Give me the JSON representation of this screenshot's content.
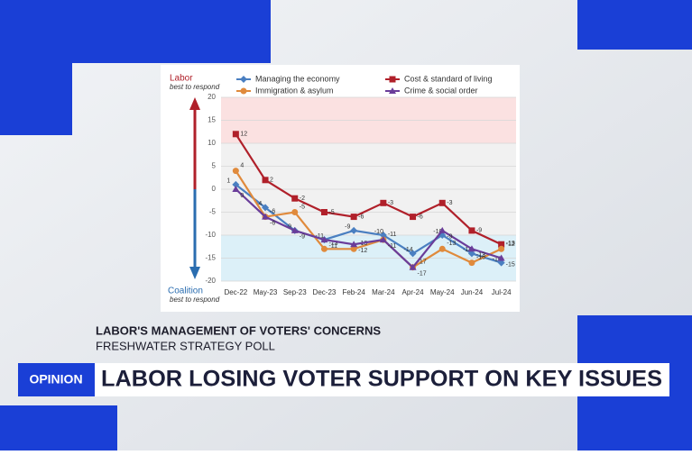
{
  "chart_data": {
    "type": "line",
    "axis_top_label": "Labor",
    "axis_top_sublabel": "best to respond",
    "axis_bottom_label": "Coalition",
    "axis_bottom_sublabel": "best to respond",
    "categories": [
      "Dec-22",
      "May-23",
      "Sep-23",
      "Dec-23",
      "Feb-24",
      "Mar-24",
      "Apr-24",
      "May-24",
      "Jun-24",
      "Jul-24"
    ],
    "series": [
      {
        "name": "Managing the economy",
        "color": "#4a7fc1",
        "marker": "diamond",
        "values": [
          1,
          -4,
          -9,
          -11,
          -9,
          -10,
          -14,
          -10,
          -14,
          -16
        ]
      },
      {
        "name": "Cost & standard of living",
        "color": "#b0202a",
        "marker": "square",
        "values": [
          12,
          2,
          -2,
          -5,
          -6,
          -3,
          -6,
          -3,
          -9,
          -12
        ]
      },
      {
        "name": "Immigration & asylum",
        "color": "#e08a3c",
        "marker": "circle",
        "values": [
          4,
          -6,
          -5,
          -13,
          -13,
          -11,
          -17,
          -13,
          -16,
          -13
        ]
      },
      {
        "name": "Crime & social order",
        "color": "#6a3d9a",
        "marker": "triangle",
        "values": [
          0,
          -6,
          -9,
          -11,
          -12,
          -11,
          -17,
          -9,
          -13,
          -15
        ]
      }
    ],
    "ylim": [
      -20,
      20
    ],
    "yticks": [
      -20,
      -15,
      -10,
      -5,
      0,
      5,
      10,
      15,
      20
    ],
    "grid": true
  },
  "caption": {
    "title": "LABOR'S MANAGEMENT OF VOTERS' CONCERNS",
    "subtitle": "FRESHWATER STRATEGY POLL"
  },
  "banner": {
    "tag": "OPINION",
    "headline": "LABOR LOSING VOTER SUPPORT ON KEY ISSUES"
  }
}
